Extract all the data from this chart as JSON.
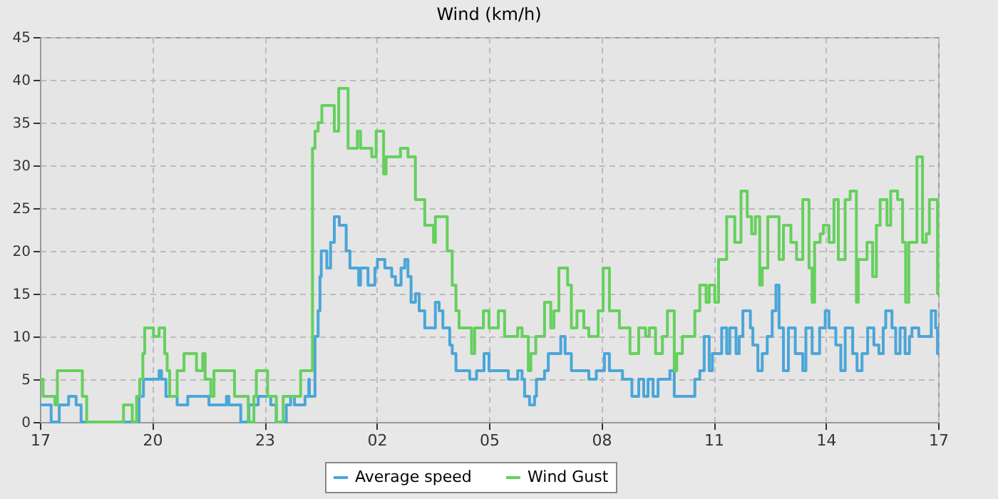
{
  "chart_data": {
    "type": "step",
    "title": "Wind (km/h)",
    "x": [
      "--01-01T17:00",
      "--01-01T17:18",
      "--01-01T17:31",
      "--01-01T17:46",
      "--01-01T17:58",
      "--01-01T18:06",
      "--01-01T19:39",
      "--01-01T19:46",
      "--01-01T20:11",
      "--01-01T20:15",
      "--01-01T20:22",
      "--01-01T20:40",
      "--01-01T20:57",
      "--01-01T21:31",
      "--01-01T21:59",
      "--01-01T22:03",
      "--01-01T22:22",
      "--01-01T22:35",
      "--01-01T22:50",
      "--01-01T23:10",
      "--01-01T23:19",
      "--01-01T23:35",
      "--01-01T23:42",
      "--01-01T23:48",
      "--01-02T00:05",
      "--01-02T00:11",
      "--01-02T00:12",
      "--01-02T00:21",
      "--01-02T00:26",
      "--01-02T00:29",
      "--01-02T00:31",
      "--01-02T00:40",
      "--01-02T00:46",
      "--01-02T00:52",
      "--01-02T01:00",
      "--01-02T01:11",
      "--01-02T01:17",
      "--01-02T01:31",
      "--01-02T01:34",
      "--01-02T01:46",
      "--01-02T01:57",
      "--01-02T02:01",
      "--01-02T02:13",
      "--01-02T02:24",
      "--01-02T02:30",
      "--01-02T02:39",
      "--01-02T02:45",
      "--01-02T02:50",
      "--01-02T02:55",
      "--01-02T03:02",
      "--01-02T03:08",
      "--01-02T03:17",
      "--01-02T03:34",
      "--01-02T03:40",
      "--01-02T03:46",
      "--01-02T03:57",
      "--01-02T04:01",
      "--01-02T04:07",
      "--01-02T04:29",
      "--01-02T04:40",
      "--01-02T04:52",
      "--01-02T05:00",
      "--01-02T05:31",
      "--01-02T05:46",
      "--01-02T05:53",
      "--01-02T05:57",
      "--01-02T06:05",
      "--01-02T06:13",
      "--01-02T06:16",
      "--01-02T06:29",
      "--01-02T06:35",
      "--01-02T06:55",
      "--01-02T07:02",
      "--01-02T07:12",
      "--01-02T07:32",
      "--01-02T07:40",
      "--01-02T07:52",
      "--01-02T08:05",
      "--01-02T08:13",
      "--01-02T08:34",
      "--01-02T08:49",
      "--01-02T09:00",
      "--01-02T09:08",
      "--01-02T09:15",
      "--01-02T09:23",
      "--01-02T09:31",
      "--01-02T09:50",
      "--01-02T09:57",
      "--01-02T10:30",
      "--01-02T10:38",
      "--01-02T10:45",
      "--01-02T10:53",
      "--01-02T10:58",
      "--01-02T11:13",
      "--01-02T11:21",
      "--01-02T11:26",
      "--01-02T11:36",
      "--01-02T11:41",
      "--01-02T11:47",
      "--01-02T11:59",
      "--01-02T12:03",
      "--01-02T12:11",
      "--01-02T12:18",
      "--01-02T12:26",
      "--01-02T12:34",
      "--01-02T12:40",
      "--01-02T12:45",
      "--01-02T12:52",
      "--01-02T13:00",
      "--01-02T13:11",
      "--01-02T13:23",
      "--01-02T13:28",
      "--01-02T13:38",
      "--01-02T13:50",
      "--01-02T13:59",
      "--01-02T14:05",
      "--01-02T14:16",
      "--01-02T14:24",
      "--01-02T14:31",
      "--01-02T14:43",
      "--01-02T14:50",
      "--01-02T14:58",
      "--01-02T15:07",
      "--01-02T15:17",
      "--01-02T15:25",
      "--01-02T15:32",
      "--01-02T15:36",
      "--01-02T15:46",
      "--01-02T15:52",
      "--01-02T15:59",
      "--01-02T16:07",
      "--01-02T16:14",
      "--01-02T16:18",
      "--01-02T16:29",
      "--01-02T16:49",
      "--01-02T16:56",
      "--01-02T16:59",
      "--01-02T17:00"
    ],
    "series": [
      {
        "name": "Average speed",
        "color": "#4ba6d8",
        "values": [
          2,
          0,
          2,
          3,
          2,
          0,
          3,
          5,
          6,
          5,
          3,
          2,
          3,
          2,
          3,
          2,
          0,
          2,
          3,
          2,
          0,
          2,
          3,
          2,
          3,
          5,
          3,
          10,
          13,
          17,
          20,
          18,
          21,
          24,
          23,
          20,
          18,
          16,
          18,
          16,
          18,
          19,
          18,
          17,
          16,
          18,
          19,
          17,
          14,
          15,
          13,
          11,
          14,
          13,
          11,
          9,
          8,
          6,
          5,
          6,
          8,
          6,
          5,
          6,
          5,
          3,
          2,
          3,
          5,
          6,
          8,
          10,
          8,
          6,
          6,
          5,
          6,
          8,
          6,
          5,
          3,
          5,
          3,
          5,
          3,
          5,
          6,
          3,
          5,
          6,
          10,
          6,
          8,
          11,
          8,
          11,
          8,
          10,
          13,
          11,
          9,
          6,
          8,
          10,
          13,
          16,
          11,
          6,
          11,
          8,
          6,
          11,
          8,
          11,
          13,
          11,
          9,
          6,
          11,
          8,
          6,
          8,
          11,
          9,
          8,
          11,
          13,
          11,
          8,
          11,
          8,
          10,
          11,
          10,
          13,
          11,
          8,
          8
        ]
      },
      {
        "name": "Wind Gust",
        "color": "#66d05e",
        "x": [
          "--01-01T17:00",
          "--01-01T17:05",
          "--01-01T17:24",
          "--01-01T17:28",
          "--01-01T18:08",
          "--01-01T18:15",
          "--01-01T19:14",
          "--01-01T19:28",
          "--01-01T19:35",
          "--01-01T19:40",
          "--01-01T19:45",
          "--01-01T19:48",
          "--01-01T20:02",
          "--01-01T20:11",
          "--01-01T20:20",
          "--01-01T20:24",
          "--01-01T20:28",
          "--01-01T20:40",
          "--01-01T20:51",
          "--01-01T21:11",
          "--01-01T21:21",
          "--01-01T21:25",
          "--01-01T21:34",
          "--01-01T21:39",
          "--01-01T21:52",
          "--01-01T22:12",
          "--01-01T22:34",
          "--01-01T22:43",
          "--01-01T22:47",
          "--01-01T23:05",
          "--01-01T23:19",
          "--01-01T23:30",
          "--01-01T23:58",
          "--01-02T00:17",
          "--01-02T00:21",
          "--01-02T00:26",
          "--01-02T00:32",
          "--01-02T00:52",
          "--01-02T00:59",
          "--01-02T01:04",
          "--01-02T01:14",
          "--01-02T01:29",
          "--01-02T01:34",
          "--01-02T01:52",
          "--01-02T01:59",
          "--01-02T02:11",
          "--01-02T02:15",
          "--01-02T02:38",
          "--01-02T02:50",
          "--01-02T03:02",
          "--01-02T03:17",
          "--01-02T03:31",
          "--01-02T03:34",
          "--01-02T03:53",
          "--01-02T04:01",
          "--01-02T04:07",
          "--01-02T04:12",
          "--01-02T04:32",
          "--01-02T04:37",
          "--01-02T04:51",
          "--01-02T05:00",
          "--01-02T05:15",
          "--01-02T05:25",
          "--01-02T05:46",
          "--01-02T05:53",
          "--01-02T06:03",
          "--01-02T06:07",
          "--01-02T06:15",
          "--01-02T06:29",
          "--01-02T06:39",
          "--01-02T06:44",
          "--01-02T06:52",
          "--01-02T07:06",
          "--01-02T07:12",
          "--01-02T07:21",
          "--01-02T07:32",
          "--01-02T07:40",
          "--01-02T07:55",
          "--01-02T08:03",
          "--01-02T08:13",
          "--01-02T08:29",
          "--01-02T08:46",
          "--01-02T09:00",
          "--01-02T09:11",
          "--01-02T09:17",
          "--01-02T09:27",
          "--01-02T09:38",
          "--01-02T09:46",
          "--01-02T09:57",
          "--01-02T10:01",
          "--01-02T10:10",
          "--01-02T10:30",
          "--01-02T10:38",
          "--01-02T10:48",
          "--01-02T10:53",
          "--01-02T11:02",
          "--01-02T11:08",
          "--01-02T11:21",
          "--01-02T11:34",
          "--01-02T11:44",
          "--01-02T11:54",
          "--01-02T12:01",
          "--01-02T12:07",
          "--01-02T12:14",
          "--01-02T12:18",
          "--01-02T12:27",
          "--01-02T12:45",
          "--01-02T12:52",
          "--01-02T13:04",
          "--01-02T13:13",
          "--01-02T13:23",
          "--01-02T13:33",
          "--01-02T13:38",
          "--01-02T13:42",
          "--01-02T13:51",
          "--01-02T13:56",
          "--01-02T14:05",
          "--01-02T14:13",
          "--01-02T14:20",
          "--01-02T14:31",
          "--01-02T14:39",
          "--01-02T14:49",
          "--01-02T14:52",
          "--01-02T15:06",
          "--01-02T15:15",
          "--01-02T15:21",
          "--01-02T15:27",
          "--01-02T15:38",
          "--01-02T15:44",
          "--01-02T15:55",
          "--01-02T16:03",
          "--01-02T16:08",
          "--01-02T16:13",
          "--01-02T16:26",
          "--01-02T16:35",
          "--01-02T16:41",
          "--01-02T16:46",
          "--01-02T16:59",
          "--01-02T17:00"
        ],
        "values": [
          5,
          3,
          2,
          6,
          3,
          0,
          2,
          0,
          3,
          5,
          8,
          11,
          10,
          11,
          8,
          6,
          3,
          6,
          8,
          6,
          8,
          5,
          3,
          6,
          6,
          3,
          0,
          3,
          6,
          3,
          0,
          3,
          6,
          32,
          34,
          35,
          37,
          34,
          39,
          39,
          32,
          34,
          32,
          31,
          34,
          29,
          31,
          32,
          31,
          26,
          23,
          21,
          24,
          20,
          16,
          13,
          11,
          8,
          11,
          13,
          11,
          13,
          10,
          11,
          10,
          6,
          8,
          10,
          14,
          11,
          13,
          18,
          16,
          11,
          13,
          11,
          10,
          13,
          18,
          13,
          11,
          8,
          11,
          10,
          11,
          8,
          10,
          13,
          6,
          8,
          10,
          13,
          16,
          14,
          16,
          14,
          19,
          24,
          21,
          27,
          24,
          22,
          24,
          16,
          18,
          24,
          19,
          23,
          21,
          19,
          26,
          18,
          14,
          21,
          22,
          23,
          21,
          26,
          19,
          26,
          27,
          14,
          19,
          21,
          17,
          23,
          26,
          23,
          27,
          26,
          21,
          14,
          21,
          31,
          21,
          22,
          26,
          15,
          15
        ]
      }
    ],
    "xlim": [
      "--01-01T17:00",
      "--01-02T17:00"
    ],
    "xticks": [
      {
        "value": "--01-01T17:00",
        "label": "17"
      },
      {
        "value": "--01-01T20:00",
        "label": "20"
      },
      {
        "value": "--01-01T23:00",
        "label": "23"
      },
      {
        "value": "--01-02T02:00",
        "label": "02"
      },
      {
        "value": "--01-02T05:00",
        "label": "05"
      },
      {
        "value": "--01-02T08:00",
        "label": "08"
      },
      {
        "value": "--01-02T11:00",
        "label": "11"
      },
      {
        "value": "--01-02T14:00",
        "label": "14"
      },
      {
        "value": "--01-02T17:00",
        "label": "17"
      }
    ],
    "ylim": [
      0,
      45
    ],
    "yticks": [
      0,
      5,
      10,
      15,
      20,
      25,
      30,
      35,
      40,
      45
    ],
    "grid": true,
    "legend": "bottom",
    "marker": "none",
    "line_style": "solid"
  }
}
